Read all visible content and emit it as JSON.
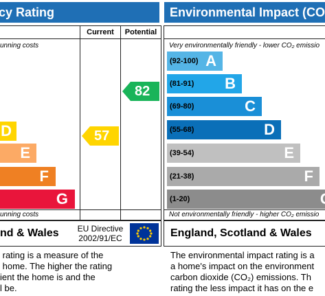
{
  "left_panel": {
    "header": "cy Rating",
    "col_current": "Current",
    "col_potential": "Potential",
    "note_top": "unning costs",
    "note_bottom": "unning costs",
    "footer_title": "nd & Wales",
    "directive_line1": "EU Directive",
    "directive_line2": "2002/91/EC",
    "description": " rating is a measure of the\n home. The higher the rating\nient the home is and the\nl be."
  },
  "right_panel": {
    "header": "Environmental Impact (CO",
    "note_top": "Very environmentally friendly - lower CO₂ emissio",
    "note_bottom": "Not environmentally friendly - higher CO₂ emissio",
    "footer_title": "England, Scotland & Wales",
    "description": "The environmental impact rating is a\na home's impact on the environment\ncarbon dioxide (CO₂) emissions. Th\nrating the less impact it has on the e"
  },
  "chart_data": [
    {
      "type": "bar",
      "title": "cy Rating",
      "categories": [
        "D",
        "E",
        "F",
        "G"
      ],
      "colors": {
        "D": "#ffd500",
        "E": "#fcaa65",
        "F": "#ef8023",
        "G": "#e9153b"
      },
      "current": {
        "value": 57,
        "band": "D",
        "color": "#ffd500"
      },
      "potential": {
        "value": 82,
        "band": "B",
        "color": "#19b459"
      }
    },
    {
      "type": "bar",
      "title": "Environmental Impact (CO",
      "categories": [
        "A",
        "B",
        "C",
        "D",
        "E",
        "F",
        "G"
      ],
      "ranges": [
        "(92-100)",
        "(81-91)",
        "(69-80)",
        "(55-68)",
        "(39-54)",
        "(21-38)",
        "(1-20)"
      ],
      "colors": {
        "A": "#55b5e6",
        "B": "#22a6e8",
        "C": "#1a8fd7",
        "D": "#0a6fb8",
        "E": "#c0c0c0",
        "F": "#aaaaaa",
        "G": "#8c8c8c"
      }
    }
  ]
}
